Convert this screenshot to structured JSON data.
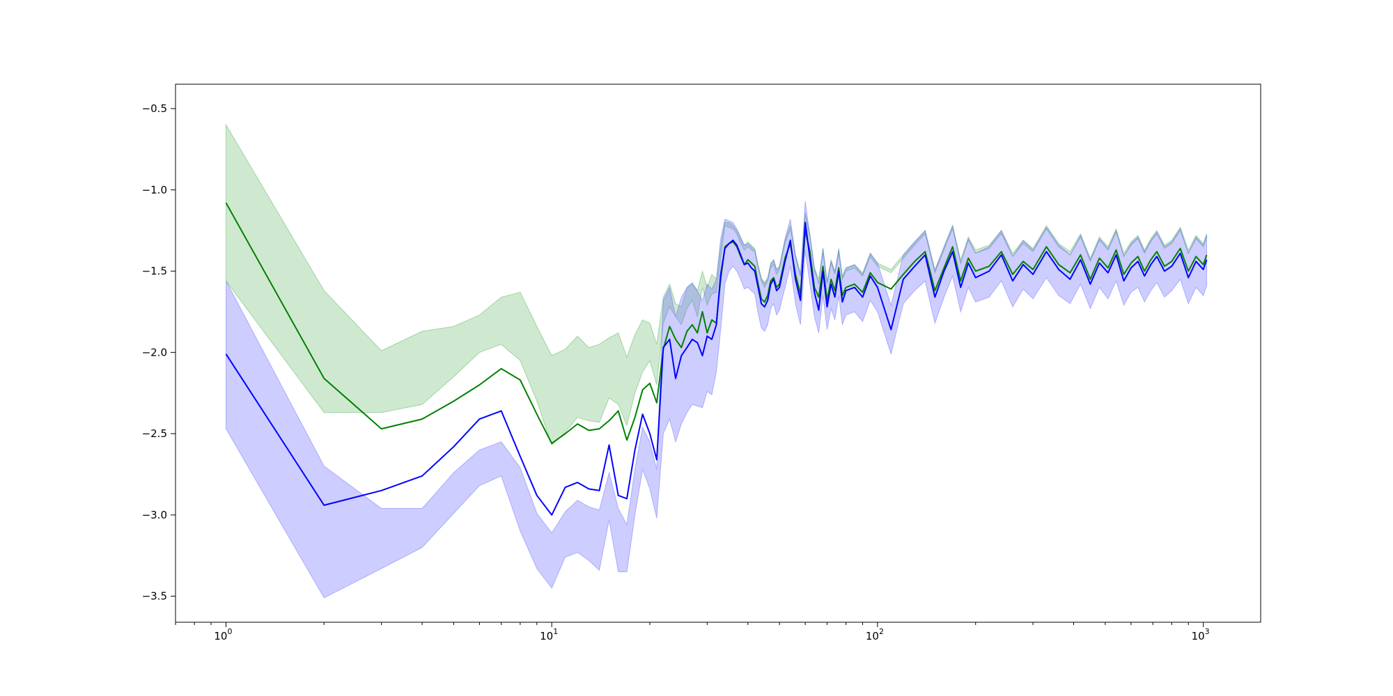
{
  "chart_data": {
    "type": "line",
    "title": "",
    "xlabel": "",
    "ylabel": "",
    "xscale": "log",
    "xlim": [
      0.7,
      1500
    ],
    "ylim": [
      -3.66,
      -0.35
    ],
    "grid": false,
    "legend": "none",
    "x_ticks": [
      {
        "base": "10",
        "exp": "0",
        "value": 1
      },
      {
        "base": "10",
        "exp": "1",
        "value": 10
      },
      {
        "base": "10",
        "exp": "2",
        "value": 100
      },
      {
        "base": "10",
        "exp": "3",
        "value": 1000
      }
    ],
    "y_ticks": [
      {
        "label": "−0.5",
        "value": -0.5
      },
      {
        "label": "−1.0",
        "value": -1.0
      },
      {
        "label": "−1.5",
        "value": -1.5
      },
      {
        "label": "−2.0",
        "value": -2.0
      },
      {
        "label": "−2.5",
        "value": -2.5
      },
      {
        "label": "−3.0",
        "value": -3.0
      },
      {
        "label": "−3.5",
        "value": -3.5
      }
    ],
    "series": [
      {
        "color": "#008000",
        "band_color": "#4caf50",
        "band_opacity": 0.27,
        "x": [
          1,
          2,
          3,
          4,
          5,
          6,
          7,
          8,
          9,
          10,
          11,
          12,
          13,
          14,
          15,
          16,
          17,
          18,
          19,
          20,
          21,
          22,
          23,
          24,
          25,
          26,
          27,
          28,
          29,
          30,
          31,
          32,
          33,
          34,
          35,
          36,
          37,
          38,
          39,
          40,
          41,
          42,
          43,
          44,
          45,
          46,
          47,
          48,
          49,
          50,
          52,
          54,
          56,
          58,
          60,
          62,
          64,
          66,
          68,
          70,
          72,
          74,
          76,
          78,
          80,
          85,
          90,
          95,
          100,
          110,
          120,
          130,
          140,
          150,
          160,
          170,
          180,
          190,
          200,
          220,
          240,
          260,
          280,
          300,
          330,
          360,
          390,
          420,
          450,
          480,
          510,
          540,
          570,
          600,
          630,
          660,
          690,
          720,
          760,
          800,
          850,
          900,
          950,
          1000,
          1024
        ],
        "values": [
          -1.08,
          -2.16,
          -2.47,
          -2.41,
          -2.3,
          -2.2,
          -2.1,
          -2.17,
          -2.38,
          -2.56,
          -2.5,
          -2.44,
          -2.48,
          -2.47,
          -2.42,
          -2.36,
          -2.54,
          -2.4,
          -2.23,
          -2.19,
          -2.31,
          -1.98,
          -1.84,
          -1.92,
          -1.97,
          -1.87,
          -1.83,
          -1.88,
          -1.75,
          -1.88,
          -1.8,
          -1.82,
          -1.55,
          -1.35,
          -1.33,
          -1.32,
          -1.35,
          -1.41,
          -1.46,
          -1.43,
          -1.45,
          -1.47,
          -1.58,
          -1.67,
          -1.69,
          -1.65,
          -1.56,
          -1.54,
          -1.6,
          -1.58,
          -1.42,
          -1.33,
          -1.52,
          -1.64,
          -1.25,
          -1.38,
          -1.6,
          -1.66,
          -1.47,
          -1.68,
          -1.55,
          -1.62,
          -1.48,
          -1.65,
          -1.6,
          -1.58,
          -1.63,
          -1.51,
          -1.57,
          -1.61,
          -1.52,
          -1.44,
          -1.38,
          -1.62,
          -1.48,
          -1.35,
          -1.56,
          -1.42,
          -1.5,
          -1.47,
          -1.38,
          -1.52,
          -1.44,
          -1.49,
          -1.35,
          -1.46,
          -1.51,
          -1.4,
          -1.55,
          -1.42,
          -1.48,
          -1.37,
          -1.52,
          -1.45,
          -1.41,
          -1.5,
          -1.43,
          -1.38,
          -1.47,
          -1.44,
          -1.36,
          -1.5,
          -1.41,
          -1.46,
          -1.4
        ],
        "lower": [
          -1.56,
          -2.37,
          -2.37,
          -2.32,
          -2.15,
          -2.0,
          -1.95,
          -2.05,
          -2.3,
          -2.57,
          -2.49,
          -2.4,
          -2.42,
          -2.43,
          -2.28,
          -2.32,
          -2.45,
          -2.25,
          -2.12,
          -2.05,
          -2.2,
          -1.82,
          -1.72,
          -1.78,
          -1.83,
          -1.73,
          -1.68,
          -1.78,
          -1.6,
          -1.71,
          -1.64,
          -1.63,
          -1.42,
          -1.22,
          -1.23,
          -1.24,
          -1.27,
          -1.33,
          -1.37,
          -1.35,
          -1.37,
          -1.38,
          -1.48,
          -1.56,
          -1.6,
          -1.56,
          -1.48,
          -1.46,
          -1.52,
          -1.49,
          -1.33,
          -1.24,
          -1.42,
          -1.53,
          -1.16,
          -1.29,
          -1.5,
          -1.57,
          -1.39,
          -1.58,
          -1.45,
          -1.52,
          -1.39,
          -1.55,
          -1.5,
          -1.48,
          -1.53,
          -1.41,
          -1.47,
          -1.51,
          -1.42,
          -1.34,
          -1.27,
          -1.51,
          -1.37,
          -1.24,
          -1.45,
          -1.31,
          -1.39,
          -1.36,
          -1.27,
          -1.41,
          -1.33,
          -1.38,
          -1.24,
          -1.35,
          -1.4,
          -1.29,
          -1.44,
          -1.31,
          -1.37,
          -1.26,
          -1.41,
          -1.34,
          -1.3,
          -1.39,
          -1.32,
          -1.27,
          -1.36,
          -1.33,
          -1.25,
          -1.39,
          -1.3,
          -1.35,
          -1.29
        ],
        "upper": [
          -0.6,
          -1.62,
          -1.99,
          -1.87,
          -1.84,
          -1.77,
          -1.66,
          -1.63,
          -1.84,
          -2.02,
          -1.98,
          -1.9,
          -1.97,
          -1.95,
          -1.91,
          -1.88,
          -2.03,
          -1.89,
          -1.8,
          -1.82,
          -1.95,
          -1.66,
          -1.58,
          -1.7,
          -1.72,
          -1.6,
          -1.58,
          -1.62,
          -1.5,
          -1.6,
          -1.52,
          -1.55,
          -1.35,
          -1.2,
          -1.2,
          -1.22,
          -1.25,
          -1.3,
          -1.34,
          -1.32,
          -1.34,
          -1.36,
          -1.46,
          -1.54,
          -1.57,
          -1.54,
          -1.45,
          -1.43,
          -1.49,
          -1.47,
          -1.31,
          -1.22,
          -1.4,
          -1.51,
          -1.14,
          -1.27,
          -1.48,
          -1.55,
          -1.36,
          -1.56,
          -1.43,
          -1.5,
          -1.37,
          -1.53,
          -1.48,
          -1.46,
          -1.51,
          -1.39,
          -1.45,
          -1.49,
          -1.4,
          -1.32,
          -1.25,
          -1.49,
          -1.35,
          -1.22,
          -1.43,
          -1.29,
          -1.37,
          -1.34,
          -1.25,
          -1.39,
          -1.31,
          -1.36,
          -1.22,
          -1.33,
          -1.38,
          -1.27,
          -1.42,
          -1.29,
          -1.35,
          -1.24,
          -1.39,
          -1.32,
          -1.28,
          -1.37,
          -1.3,
          -1.25,
          -1.34,
          -1.31,
          -1.23,
          -1.37,
          -1.28,
          -1.33,
          -1.27
        ]
      },
      {
        "color": "#0000ff",
        "band_color": "#6666ff",
        "band_opacity": 0.33,
        "x": [
          1,
          2,
          3,
          4,
          5,
          6,
          7,
          8,
          9,
          10,
          11,
          12,
          13,
          14,
          15,
          16,
          17,
          18,
          19,
          20,
          21,
          22,
          23,
          24,
          25,
          26,
          27,
          28,
          29,
          30,
          31,
          32,
          33,
          34,
          35,
          36,
          37,
          38,
          39,
          40,
          41,
          42,
          43,
          44,
          45,
          46,
          47,
          48,
          49,
          50,
          52,
          54,
          56,
          58,
          60,
          62,
          64,
          66,
          68,
          70,
          72,
          74,
          76,
          78,
          80,
          85,
          90,
          95,
          100,
          110,
          120,
          130,
          140,
          150,
          160,
          170,
          180,
          190,
          200,
          220,
          240,
          260,
          280,
          300,
          330,
          360,
          390,
          420,
          450,
          480,
          510,
          540,
          570,
          600,
          630,
          660,
          690,
          720,
          760,
          800,
          850,
          900,
          950,
          1000,
          1024
        ],
        "values": [
          -2.01,
          -2.94,
          -2.85,
          -2.76,
          -2.58,
          -2.41,
          -2.36,
          -2.64,
          -2.88,
          -3.0,
          -2.83,
          -2.8,
          -2.84,
          -2.85,
          -2.57,
          -2.88,
          -2.9,
          -2.6,
          -2.38,
          -2.5,
          -2.66,
          -1.97,
          -1.92,
          -2.16,
          -2.02,
          -1.97,
          -1.92,
          -1.94,
          -2.02,
          -1.9,
          -1.92,
          -1.83,
          -1.52,
          -1.36,
          -1.33,
          -1.31,
          -1.34,
          -1.4,
          -1.46,
          -1.45,
          -1.48,
          -1.5,
          -1.6,
          -1.7,
          -1.72,
          -1.68,
          -1.58,
          -1.55,
          -1.62,
          -1.6,
          -1.44,
          -1.31,
          -1.55,
          -1.68,
          -1.2,
          -1.42,
          -1.63,
          -1.74,
          -1.5,
          -1.72,
          -1.58,
          -1.66,
          -1.5,
          -1.69,
          -1.62,
          -1.6,
          -1.66,
          -1.53,
          -1.6,
          -1.86,
          -1.55,
          -1.47,
          -1.4,
          -1.66,
          -1.5,
          -1.38,
          -1.6,
          -1.45,
          -1.54,
          -1.5,
          -1.4,
          -1.56,
          -1.46,
          -1.52,
          -1.38,
          -1.49,
          -1.55,
          -1.43,
          -1.58,
          -1.45,
          -1.51,
          -1.4,
          -1.56,
          -1.48,
          -1.44,
          -1.53,
          -1.46,
          -1.41,
          -1.5,
          -1.47,
          -1.39,
          -1.54,
          -1.44,
          -1.49,
          -1.43
        ],
        "lower": [
          -2.47,
          -3.51,
          -3.33,
          -3.2,
          -2.99,
          -2.82,
          -2.76,
          -3.1,
          -3.33,
          -3.45,
          -3.26,
          -3.23,
          -3.28,
          -3.34,
          -3.03,
          -3.35,
          -3.35,
          -3.0,
          -2.72,
          -2.84,
          -3.02,
          -2.5,
          -2.41,
          -2.55,
          -2.44,
          -2.37,
          -2.32,
          -2.33,
          -2.34,
          -2.24,
          -2.26,
          -2.12,
          -1.86,
          -1.58,
          -1.5,
          -1.47,
          -1.5,
          -1.55,
          -1.61,
          -1.6,
          -1.62,
          -1.64,
          -1.76,
          -1.85,
          -1.87,
          -1.83,
          -1.73,
          -1.7,
          -1.77,
          -1.74,
          -1.6,
          -1.47,
          -1.7,
          -1.83,
          -1.37,
          -1.58,
          -1.78,
          -1.88,
          -1.65,
          -1.86,
          -1.73,
          -1.8,
          -1.65,
          -1.83,
          -1.77,
          -1.75,
          -1.81,
          -1.68,
          -1.75,
          -2.01,
          -1.7,
          -1.62,
          -1.56,
          -1.82,
          -1.66,
          -1.53,
          -1.75,
          -1.6,
          -1.69,
          -1.66,
          -1.56,
          -1.72,
          -1.61,
          -1.67,
          -1.54,
          -1.65,
          -1.7,
          -1.58,
          -1.73,
          -1.6,
          -1.67,
          -1.56,
          -1.71,
          -1.63,
          -1.6,
          -1.69,
          -1.62,
          -1.57,
          -1.66,
          -1.62,
          -1.55,
          -1.7,
          -1.6,
          -1.65,
          -1.59
        ],
        "upper": [
          -1.56,
          -2.7,
          -2.96,
          -2.96,
          -2.74,
          -2.6,
          -2.55,
          -2.71,
          -2.99,
          -3.11,
          -2.98,
          -2.91,
          -2.95,
          -2.97,
          -2.74,
          -2.96,
          -3.06,
          -2.72,
          -2.46,
          -2.55,
          -2.72,
          -1.68,
          -1.6,
          -1.78,
          -1.66,
          -1.6,
          -1.57,
          -1.62,
          -1.68,
          -1.58,
          -1.61,
          -1.55,
          -1.3,
          -1.18,
          -1.19,
          -1.2,
          -1.24,
          -1.29,
          -1.34,
          -1.33,
          -1.35,
          -1.37,
          -1.47,
          -1.55,
          -1.58,
          -1.55,
          -1.46,
          -1.43,
          -1.49,
          -1.47,
          -1.3,
          -1.18,
          -1.4,
          -1.53,
          -1.07,
          -1.28,
          -1.48,
          -1.58,
          -1.36,
          -1.57,
          -1.44,
          -1.51,
          -1.36,
          -1.54,
          -1.48,
          -1.46,
          -1.52,
          -1.39,
          -1.45,
          -1.71,
          -1.4,
          -1.32,
          -1.25,
          -1.5,
          -1.35,
          -1.22,
          -1.45,
          -1.3,
          -1.39,
          -1.35,
          -1.25,
          -1.41,
          -1.31,
          -1.37,
          -1.23,
          -1.34,
          -1.4,
          -1.28,
          -1.43,
          -1.3,
          -1.36,
          -1.25,
          -1.41,
          -1.33,
          -1.29,
          -1.38,
          -1.31,
          -1.26,
          -1.35,
          -1.32,
          -1.24,
          -1.39,
          -1.29,
          -1.34,
          -1.28
        ]
      }
    ]
  }
}
